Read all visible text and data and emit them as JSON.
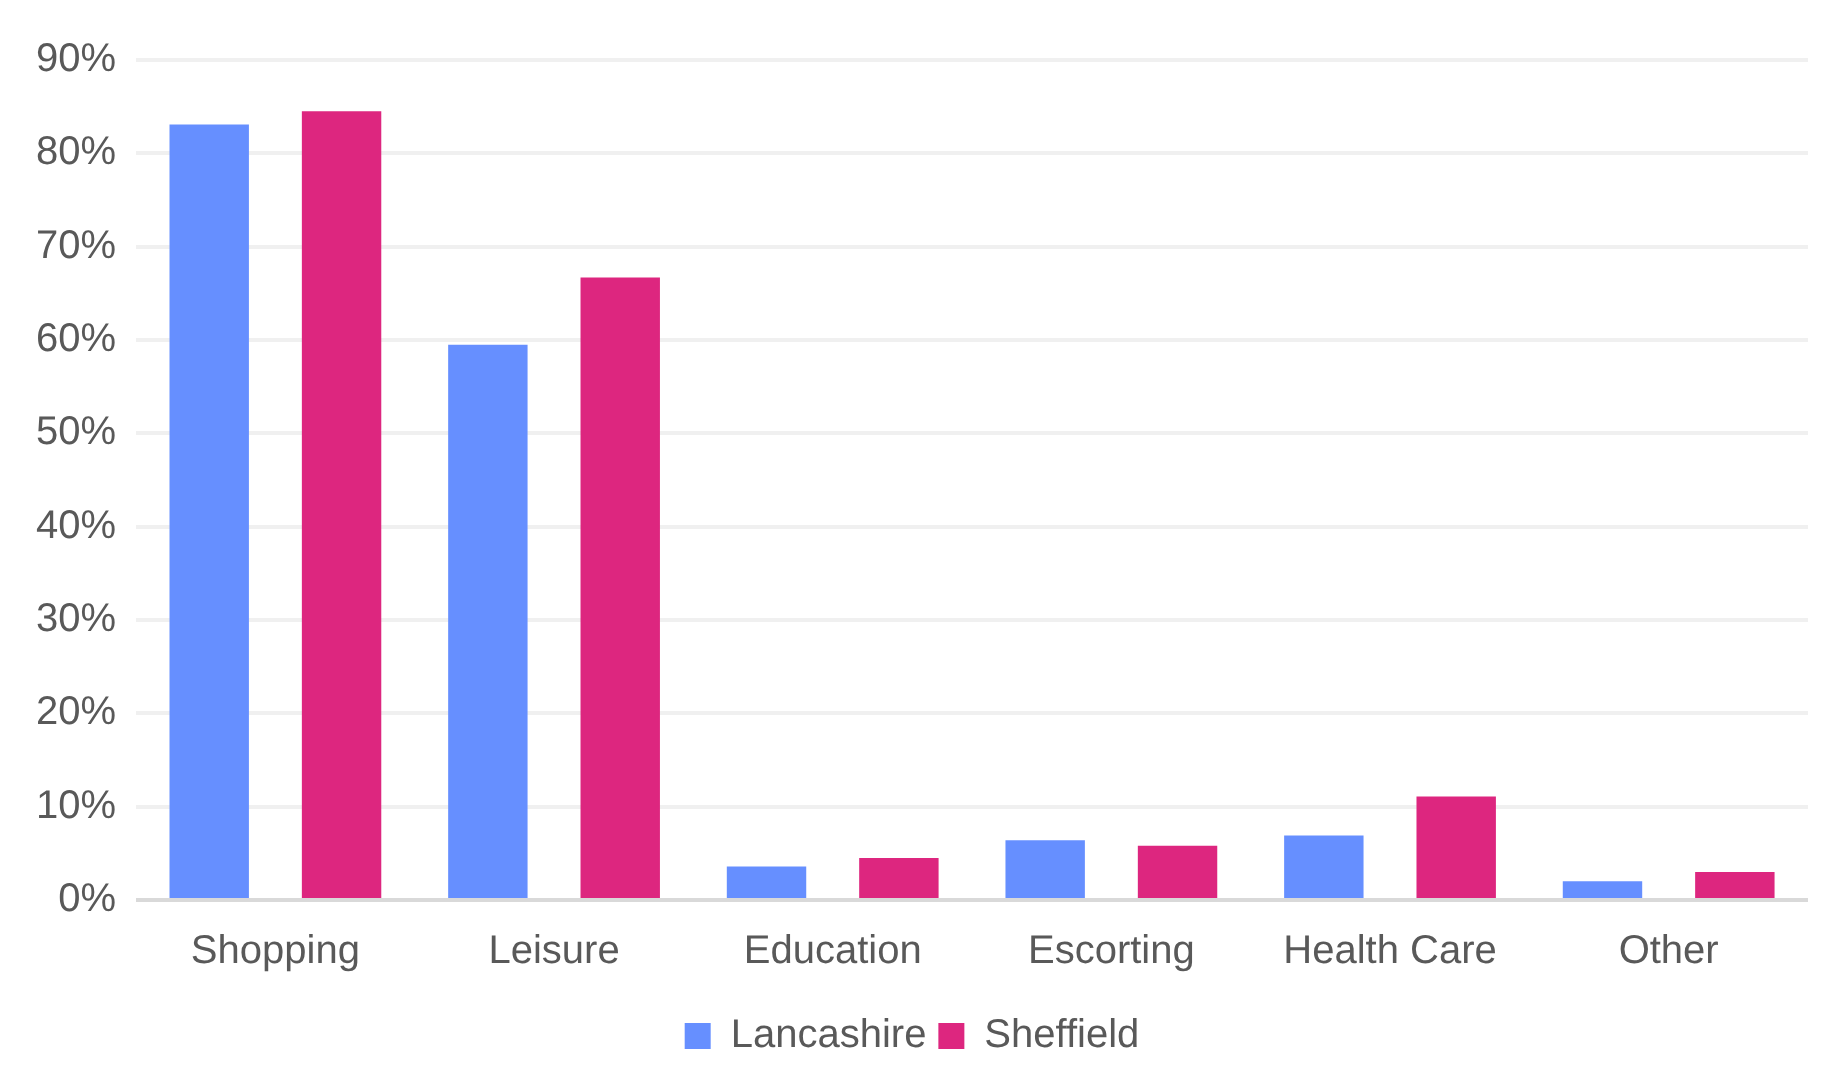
{
  "chart_data": {
    "type": "bar",
    "categories": [
      "Shopping",
      "Leisure",
      "Education",
      "Escorting",
      "Health Care",
      "Other"
    ],
    "series": [
      {
        "name": "Lancashire",
        "color": "#668fff",
        "values": [
          83.1,
          59.5,
          3.6,
          6.4,
          6.9,
          2.0
        ]
      },
      {
        "name": "Sheffield",
        "color": "#dd267f",
        "values": [
          84.5,
          66.7,
          4.5,
          5.8,
          11.1,
          3.0
        ]
      }
    ],
    "ylim": [
      0,
      90
    ],
    "yticks": [
      {
        "value": 0,
        "label": "0%"
      },
      {
        "value": 10,
        "label": "10%"
      },
      {
        "value": 20,
        "label": "20%"
      },
      {
        "value": 30,
        "label": "30%"
      },
      {
        "value": 40,
        "label": "40%"
      },
      {
        "value": 50,
        "label": "50%"
      },
      {
        "value": 60,
        "label": "60%"
      },
      {
        "value": 70,
        "label": "70%"
      },
      {
        "value": 80,
        "label": "80%"
      },
      {
        "value": 90,
        "label": "90%"
      }
    ],
    "grid": "y",
    "legend": "bottom"
  }
}
